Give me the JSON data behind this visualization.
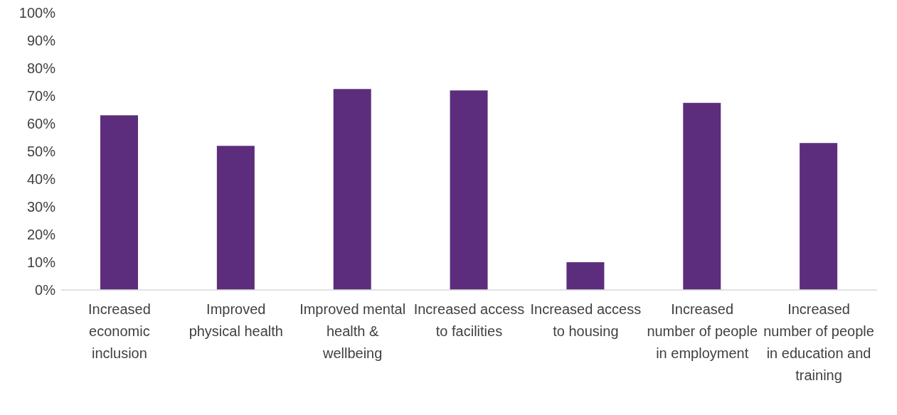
{
  "chart_data": {
    "type": "bar",
    "categories": [
      "Increased economic inclusion",
      "Improved physical health",
      "Improved mental health & wellbeing",
      "Increased access to facilities",
      "Increased access to housing",
      "Increased number of people in employment",
      "Increased number of people in education and training"
    ],
    "values": [
      63,
      52,
      72.5,
      72,
      10,
      67.5,
      53
    ],
    "color": "#5c2d7d",
    "ylim": [
      0,
      100
    ],
    "yticks": [
      {
        "value": 0,
        "label": "0%"
      },
      {
        "value": 10,
        "label": "10%"
      },
      {
        "value": 20,
        "label": "20%"
      },
      {
        "value": 30,
        "label": "30%"
      },
      {
        "value": 40,
        "label": "40%"
      },
      {
        "value": 50,
        "label": "50%"
      },
      {
        "value": 60,
        "label": "60%"
      },
      {
        "value": 70,
        "label": "70%"
      },
      {
        "value": 80,
        "label": "80%"
      },
      {
        "value": 90,
        "label": "90%"
      },
      {
        "value": 100,
        "label": "100%"
      }
    ],
    "grid": false,
    "legend": false
  }
}
